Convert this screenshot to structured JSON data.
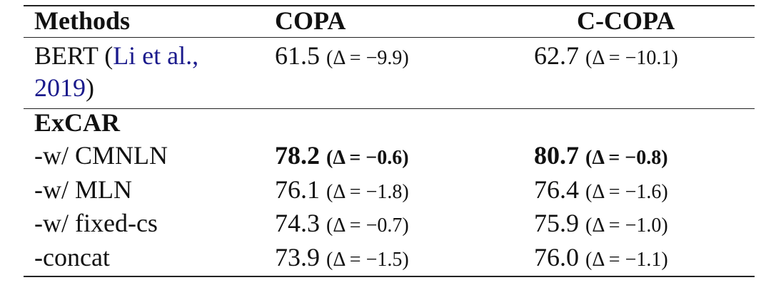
{
  "header": {
    "methods": "Methods",
    "copa": "COPA",
    "ccopa": "C-COPA"
  },
  "baseline": {
    "method": "BERT (",
    "citation": "Li et al., 2019",
    "close": ")",
    "copa": {
      "score": "61.5",
      "delta": "(Δ = −9.9)"
    },
    "ccopa": {
      "score": "62.7",
      "delta": "(Δ = −10.1)"
    }
  },
  "group": "ExCAR",
  "rows": [
    {
      "method": "-w/ CMNLN",
      "copa": {
        "score": "78.2",
        "delta": "(Δ = −0.6)"
      },
      "ccopa": {
        "score": "80.7",
        "delta": "(Δ = −0.8)"
      }
    },
    {
      "method": "-w/ MLN",
      "copa": {
        "score": "76.1",
        "delta": "(Δ = −1.8)"
      },
      "ccopa": {
        "score": "76.4",
        "delta": "(Δ = −1.6)"
      }
    },
    {
      "method": "-w/ fixed-cs",
      "copa": {
        "score": "74.3",
        "delta": "(Δ = −0.7)"
      },
      "ccopa": {
        "score": "75.9",
        "delta": "(Δ = −1.0)"
      }
    },
    {
      "method": "-concat",
      "copa": {
        "score": "73.9",
        "delta": "(Δ = −1.5)"
      },
      "ccopa": {
        "score": "76.0",
        "delta": "(Δ = −1.1)"
      }
    }
  ]
}
